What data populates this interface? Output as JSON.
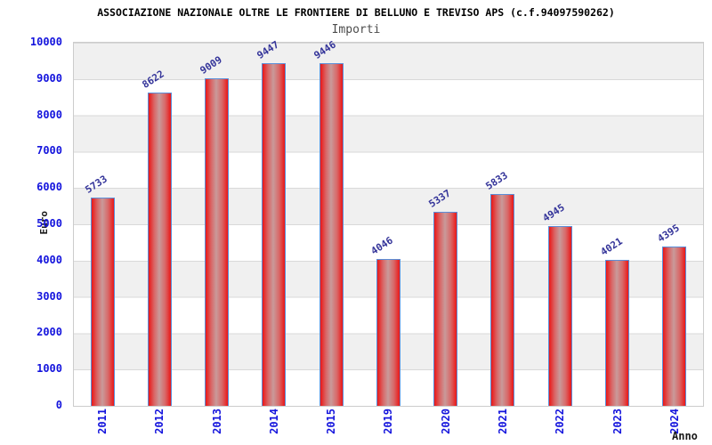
{
  "chart_data": {
    "type": "bar",
    "title": "ASSOCIAZIONE NAZIONALE OLTRE LE FRONTIERE DI BELLUNO E TREVISO APS (c.f.94097590262)",
    "subtitle": "Importi",
    "xlabel": "Anno",
    "ylabel": "Euro",
    "categories": [
      "2011",
      "2012",
      "2013",
      "2014",
      "2015",
      "2019",
      "2020",
      "2021",
      "2022",
      "2023",
      "2024"
    ],
    "values": [
      5733,
      8622,
      9009,
      9447,
      9446,
      4046,
      5337,
      5833,
      4945,
      4021,
      4395
    ],
    "ylim": [
      0,
      10000
    ],
    "ytick_step": 1000,
    "ytick_labels": [
      "10000",
      "9000",
      "8000",
      "7000",
      "6000",
      "5000",
      "4000",
      "3000",
      "2000",
      "1000",
      "0"
    ],
    "grid": "horizontal gridlines every 1000 with alternating gray/white background bands, gray band at top (10000-9000)",
    "legend": "none",
    "bar_style": "vertical cylinder-shaded red bars with light blue outline, value labels rotated above each bar",
    "colors": {
      "bar_red": "#ea1717",
      "bar_mid": "#c99a9a",
      "bar_border": "#5b8ed8",
      "tick_blue": "#1414dd",
      "value_label": "#333399",
      "band_gray": "#f0f0f0",
      "band_white": "#ffffff",
      "grid_line": "#d9d9d9",
      "plot_border": "#cccccc",
      "title_color": "#000000",
      "subtitle_color": "#4d4d4d",
      "axis_title_color": "#1a1a1a"
    }
  }
}
